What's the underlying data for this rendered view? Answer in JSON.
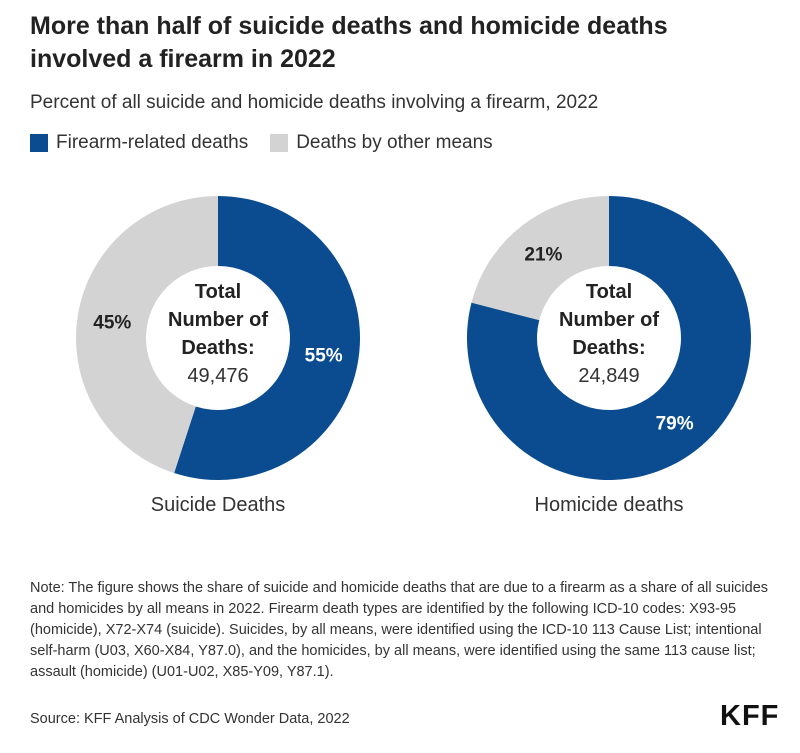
{
  "title": "More than half of suicide deaths and homicide deaths involved a firearm in 2022",
  "subtitle": "Percent of all suicide and homicide deaths involving a firearm, 2022",
  "legend": [
    {
      "label": "Firearm-related deaths",
      "color": "#0a4c8f"
    },
    {
      "label": "Deaths by other means",
      "color": "#d3d3d3"
    }
  ],
  "chart_data": [
    {
      "type": "pie",
      "donut": true,
      "label": "Suicide Deaths",
      "center_lines": [
        "Total",
        "Number of",
        "Deaths:"
      ],
      "center_value": "49,476",
      "slices": [
        {
          "category": "Firearm-related deaths",
          "value": 55,
          "label": "55%",
          "color": "#0a4c8f"
        },
        {
          "category": "Deaths by other means",
          "value": 45,
          "label": "45%",
          "color": "#d3d3d3"
        }
      ]
    },
    {
      "type": "pie",
      "donut": true,
      "label": "Homicide deaths",
      "center_lines": [
        "Total",
        "Number of",
        "Deaths:"
      ],
      "center_value": "24,849",
      "slices": [
        {
          "category": "Firearm-related deaths",
          "value": 79,
          "label": "79%",
          "color": "#0a4c8f"
        },
        {
          "category": "Deaths by other means",
          "value": 21,
          "label": "21%",
          "color": "#d3d3d3"
        }
      ]
    }
  ],
  "note": "Note: The figure shows the share of suicide and homicide deaths that are due to a firearm as a share of all suicides and homicides by all means in 2022. Firearm death types are identified by the following ICD-10 codes: X93-95 (homicide), X72-X74 (suicide). Suicides, by all means, were identified using the ICD-10 113 Cause List; intentional self-harm (U03, X60-X84, Y87.0), and the homicides, by all means, were identified using the same 113 cause list; assault (homicide) (U01-U02, X85-Y09, Y87.1).",
  "source": "Source: KFF Analysis of CDC Wonder Data, 2022",
  "logo": "KFF"
}
